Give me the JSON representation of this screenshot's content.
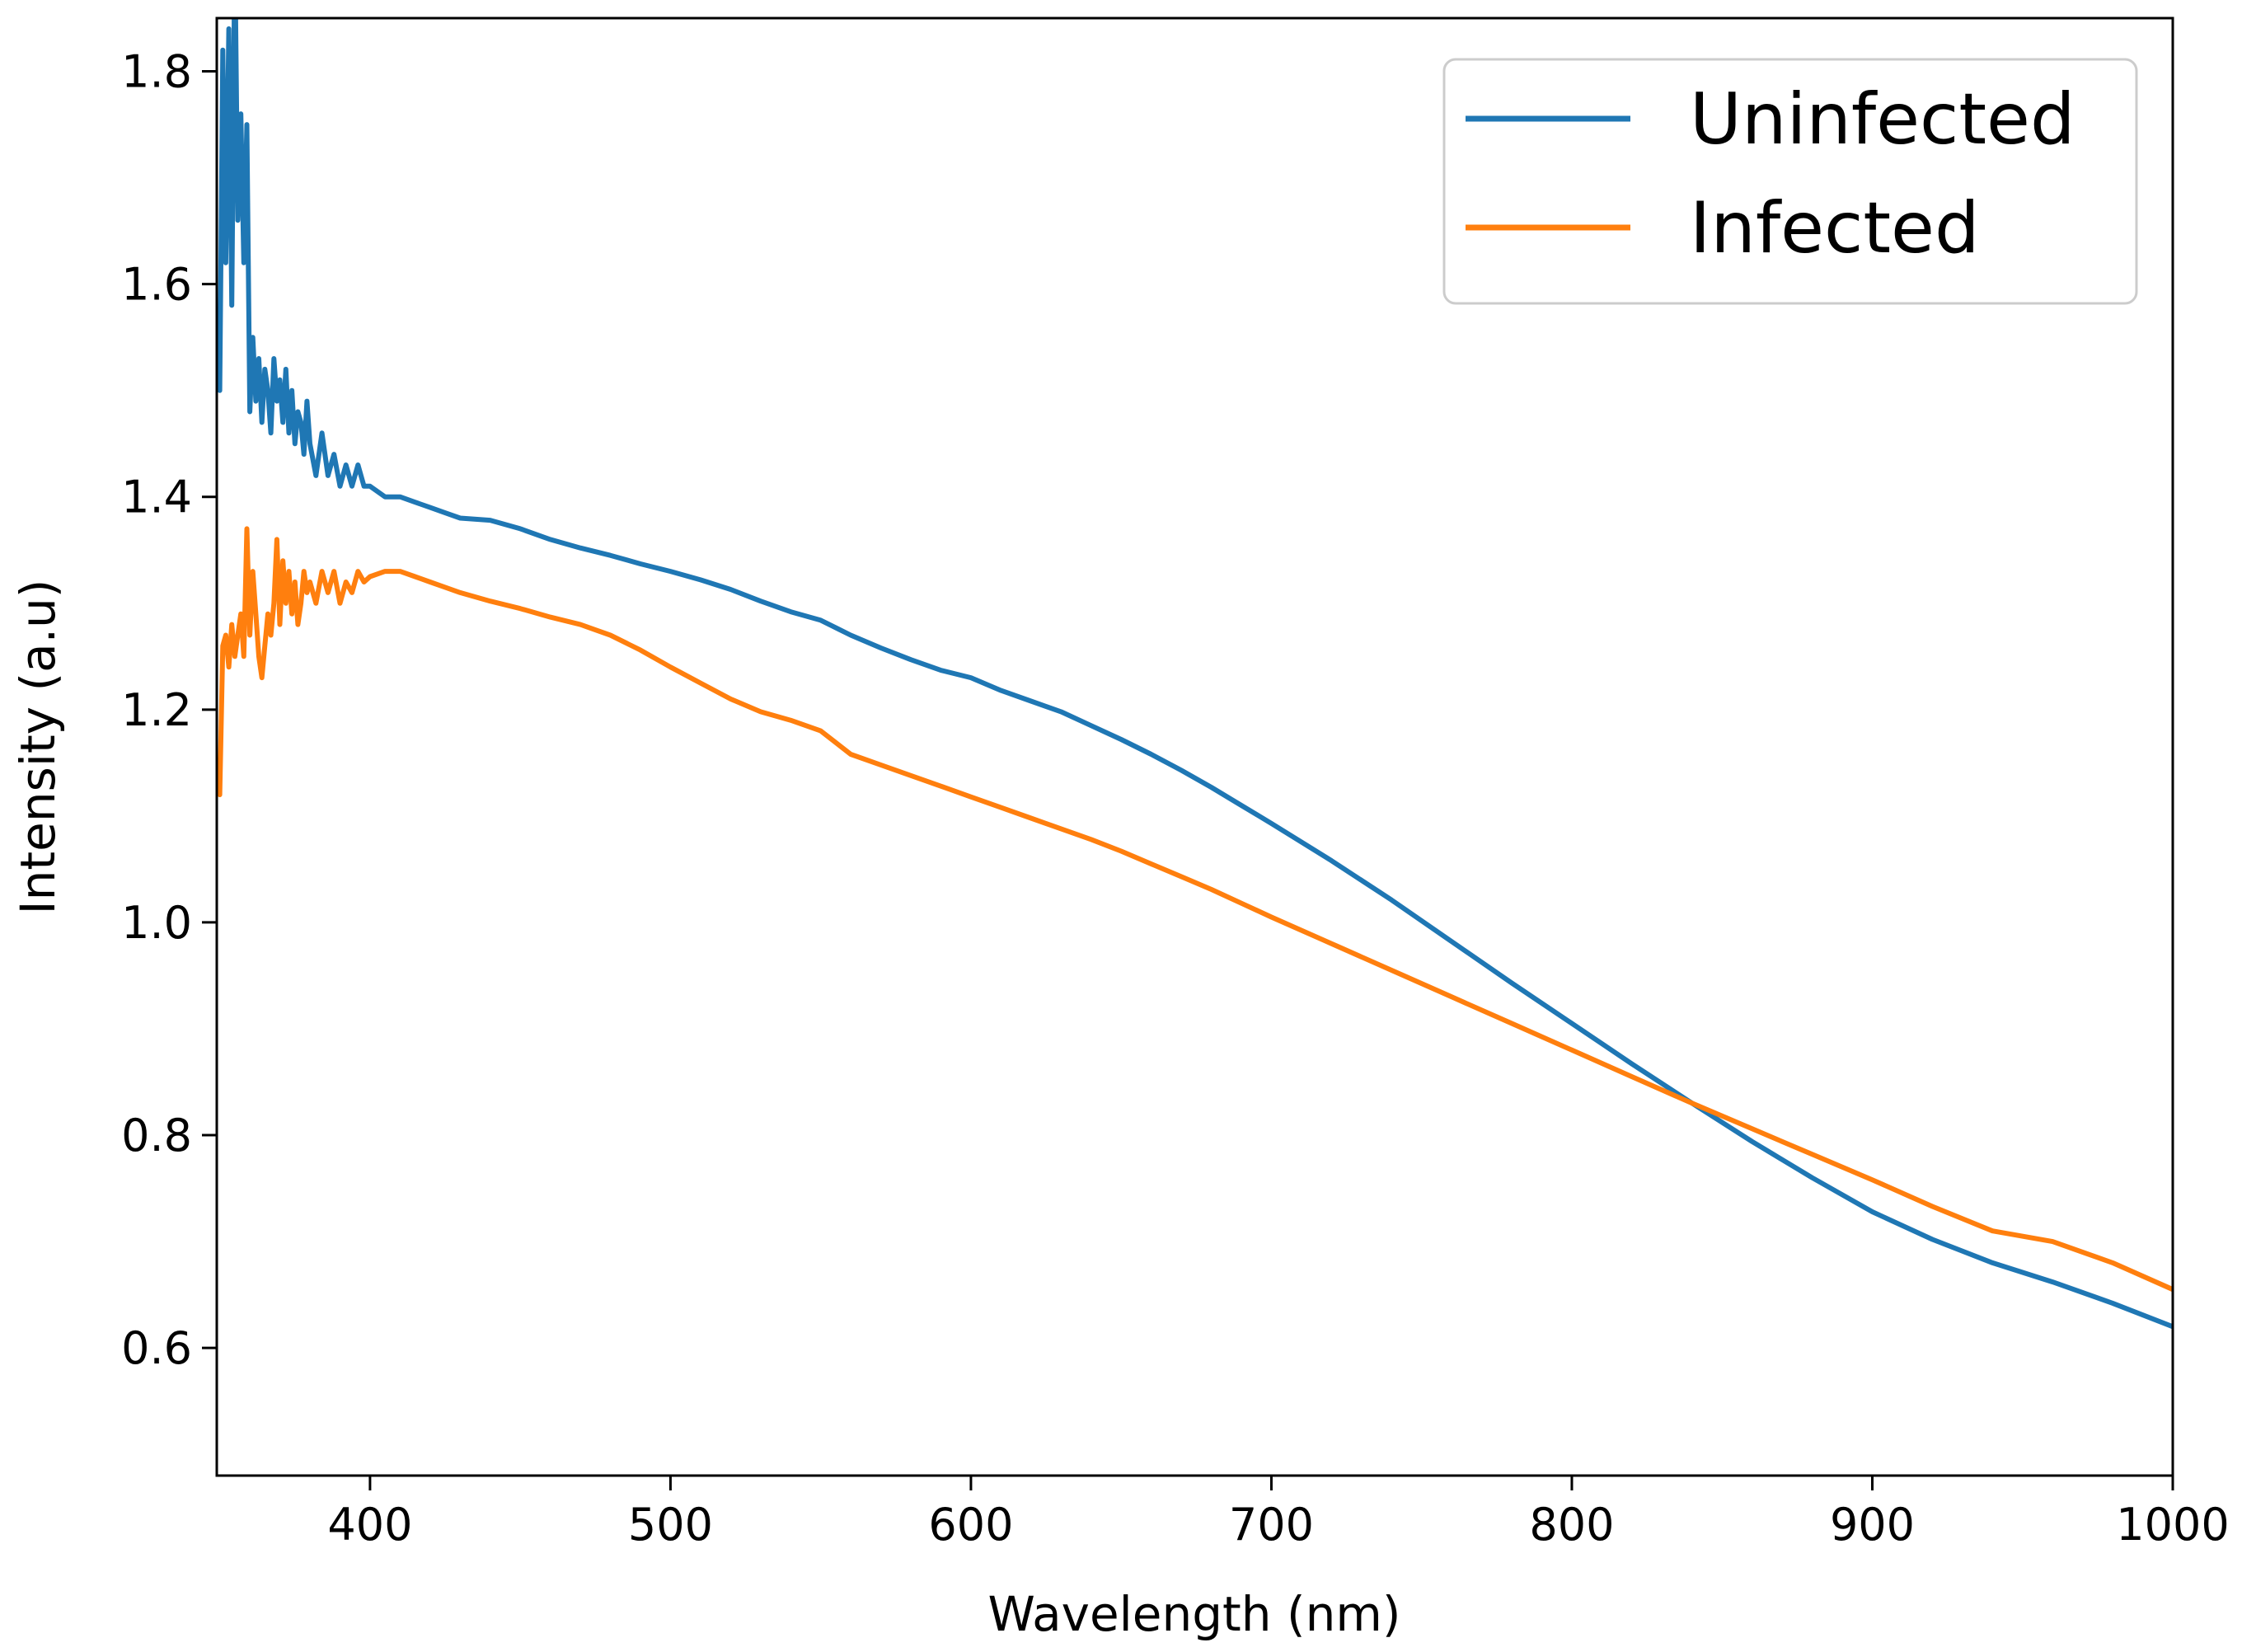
{
  "chart_data": {
    "type": "line",
    "title": "",
    "xlabel": "Wavelength (nm)",
    "ylabel": "Intensity (a.u)",
    "xlim": [
      349,
      1000
    ],
    "ylim": [
      0.48,
      1.85
    ],
    "xticks": [
      400,
      500,
      600,
      700,
      800,
      900,
      1000
    ],
    "yticks": [
      0.6,
      0.8,
      1.0,
      1.2,
      1.4,
      1.6,
      1.8
    ],
    "xtick_labels": [
      "400",
      "500",
      "600",
      "700",
      "800",
      "900",
      "1000"
    ],
    "ytick_labels": [
      "0.6",
      "0.8",
      "1.0",
      "1.2",
      "1.4",
      "1.6",
      "1.8"
    ],
    "grid": false,
    "legend_position": "top-right",
    "series": [
      {
        "name": "Uninfected",
        "color": "#1f77b4",
        "x": [
          350,
          351,
          352,
          353,
          354,
          355,
          356,
          357,
          358,
          359,
          360,
          361,
          362,
          363,
          364,
          365,
          366,
          367,
          368,
          369,
          370,
          371,
          372,
          373,
          374,
          375,
          376,
          377,
          378,
          379,
          380,
          382,
          384,
          386,
          388,
          390,
          392,
          394,
          396,
          398,
          400,
          405,
          410,
          415,
          420,
          425,
          430,
          440,
          450,
          460,
          470,
          480,
          490,
          500,
          510,
          520,
          530,
          540,
          550,
          560,
          570,
          580,
          590,
          600,
          610,
          620,
          630,
          640,
          650,
          660,
          670,
          680,
          690,
          700,
          720,
          740,
          760,
          780,
          800,
          820,
          840,
          860,
          880,
          900,
          920,
          940,
          960,
          980,
          1000
        ],
        "y": [
          1.5,
          1.82,
          1.62,
          1.84,
          1.58,
          1.92,
          1.66,
          1.76,
          1.62,
          1.75,
          1.48,
          1.55,
          1.49,
          1.53,
          1.47,
          1.52,
          1.5,
          1.46,
          1.53,
          1.49,
          1.51,
          1.47,
          1.52,
          1.46,
          1.5,
          1.45,
          1.48,
          1.47,
          1.44,
          1.49,
          1.45,
          1.42,
          1.46,
          1.42,
          1.44,
          1.41,
          1.43,
          1.41,
          1.43,
          1.41,
          1.41,
          1.4,
          1.4,
          1.395,
          1.39,
          1.385,
          1.38,
          1.378,
          1.37,
          1.36,
          1.352,
          1.345,
          1.337,
          1.33,
          1.322,
          1.313,
          1.302,
          1.292,
          1.284,
          1.27,
          1.258,
          1.247,
          1.237,
          1.23,
          1.218,
          1.208,
          1.198,
          1.185,
          1.172,
          1.158,
          1.143,
          1.127,
          1.11,
          1.093,
          1.058,
          1.021,
          0.982,
          0.943,
          0.905,
          0.867,
          0.83,
          0.794,
          0.76,
          0.728,
          0.702,
          0.68,
          0.662,
          0.642,
          0.62
        ]
      },
      {
        "name": "Infected",
        "color": "#ff7f0e",
        "x": [
          350,
          351,
          352,
          353,
          354,
          355,
          356,
          357,
          358,
          359,
          360,
          361,
          362,
          363,
          364,
          365,
          366,
          367,
          368,
          369,
          370,
          371,
          372,
          373,
          374,
          375,
          376,
          377,
          378,
          379,
          380,
          382,
          384,
          386,
          388,
          390,
          392,
          394,
          396,
          398,
          400,
          405,
          410,
          415,
          420,
          425,
          430,
          440,
          450,
          460,
          470,
          480,
          490,
          500,
          510,
          520,
          530,
          540,
          550,
          560,
          570,
          580,
          590,
          600,
          610,
          620,
          630,
          640,
          650,
          660,
          670,
          680,
          690,
          700,
          720,
          740,
          760,
          780,
          800,
          820,
          840,
          860,
          880,
          900,
          920,
          940,
          960,
          980,
          1000
        ],
        "y": [
          1.12,
          1.26,
          1.27,
          1.24,
          1.28,
          1.25,
          1.27,
          1.29,
          1.25,
          1.37,
          1.27,
          1.33,
          1.29,
          1.25,
          1.23,
          1.26,
          1.29,
          1.27,
          1.3,
          1.36,
          1.28,
          1.34,
          1.3,
          1.33,
          1.29,
          1.32,
          1.28,
          1.3,
          1.33,
          1.31,
          1.32,
          1.3,
          1.33,
          1.31,
          1.33,
          1.3,
          1.32,
          1.31,
          1.33,
          1.32,
          1.325,
          1.33,
          1.33,
          1.325,
          1.32,
          1.315,
          1.31,
          1.302,
          1.295,
          1.287,
          1.28,
          1.27,
          1.256,
          1.24,
          1.225,
          1.21,
          1.198,
          1.19,
          1.18,
          1.158,
          1.148,
          1.138,
          1.128,
          1.118,
          1.108,
          1.098,
          1.088,
          1.078,
          1.067,
          1.055,
          1.043,
          1.031,
          1.018,
          1.005,
          0.98,
          0.955,
          0.93,
          0.905,
          0.88,
          0.855,
          0.83,
          0.806,
          0.782,
          0.758,
          0.733,
          0.71,
          0.7,
          0.68,
          0.655
        ]
      }
    ]
  }
}
